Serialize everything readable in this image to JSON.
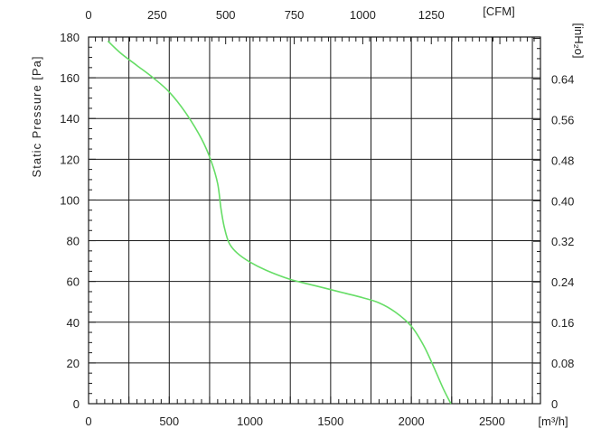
{
  "chart_data": {
    "type": "line",
    "title": "",
    "ylabel": "Static Pressure [Pa]",
    "xlabel_bottom_unit": "[m³/h]",
    "xlabel_top_unit": "[CFM]",
    "ylabel_right_unit": "[inH₂o]",
    "xlim": [
      0,
      2800
    ],
    "ylim": [
      0,
      180
    ],
    "x_ticks_bottom": [
      0,
      500,
      1000,
      1500,
      2000,
      2500
    ],
    "x_tick_labels_bottom": [
      "0",
      "500",
      "1000",
      "1500",
      "2000",
      "2500"
    ],
    "x_ticks_top_cfm": [
      0,
      250,
      500,
      750,
      1000,
      1250
    ],
    "x_tick_labels_top": [
      "0",
      "250",
      "500",
      "750",
      "1000",
      "1250"
    ],
    "y_ticks_left": [
      0,
      20,
      40,
      60,
      80,
      100,
      120,
      140,
      160,
      180
    ],
    "y_tick_labels_left": [
      "0",
      "20",
      "40",
      "60",
      "80",
      "100",
      "120",
      "140",
      "160",
      "180"
    ],
    "y_ticks_right_inh2o": [
      0,
      0.08,
      0.16,
      0.24,
      0.32,
      0.4,
      0.48,
      0.56,
      0.64
    ],
    "y_tick_labels_right": [
      "0",
      "0.08",
      "0.16",
      "0.24",
      "0.32",
      "0.40",
      "0.48",
      "0.56",
      "0.64"
    ],
    "grid": true,
    "series": [
      {
        "color": "#66dd66",
        "x": [
          120,
          200,
          300,
          400,
          500,
          600,
          700,
          760,
          800,
          820,
          840,
          870,
          920,
          1000,
          1100,
          1250,
          1400,
          1550,
          1700,
          1800,
          1900,
          2000,
          2080,
          2150,
          2200,
          2245
        ],
        "y": [
          178,
          172,
          166,
          160,
          153,
          143,
          130,
          119,
          108,
          96,
          87,
          79,
          74,
          69.5,
          65.5,
          61,
          58,
          55,
          52,
          49.5,
          45,
          38,
          28,
          16,
          7,
          0
        ]
      }
    ]
  }
}
